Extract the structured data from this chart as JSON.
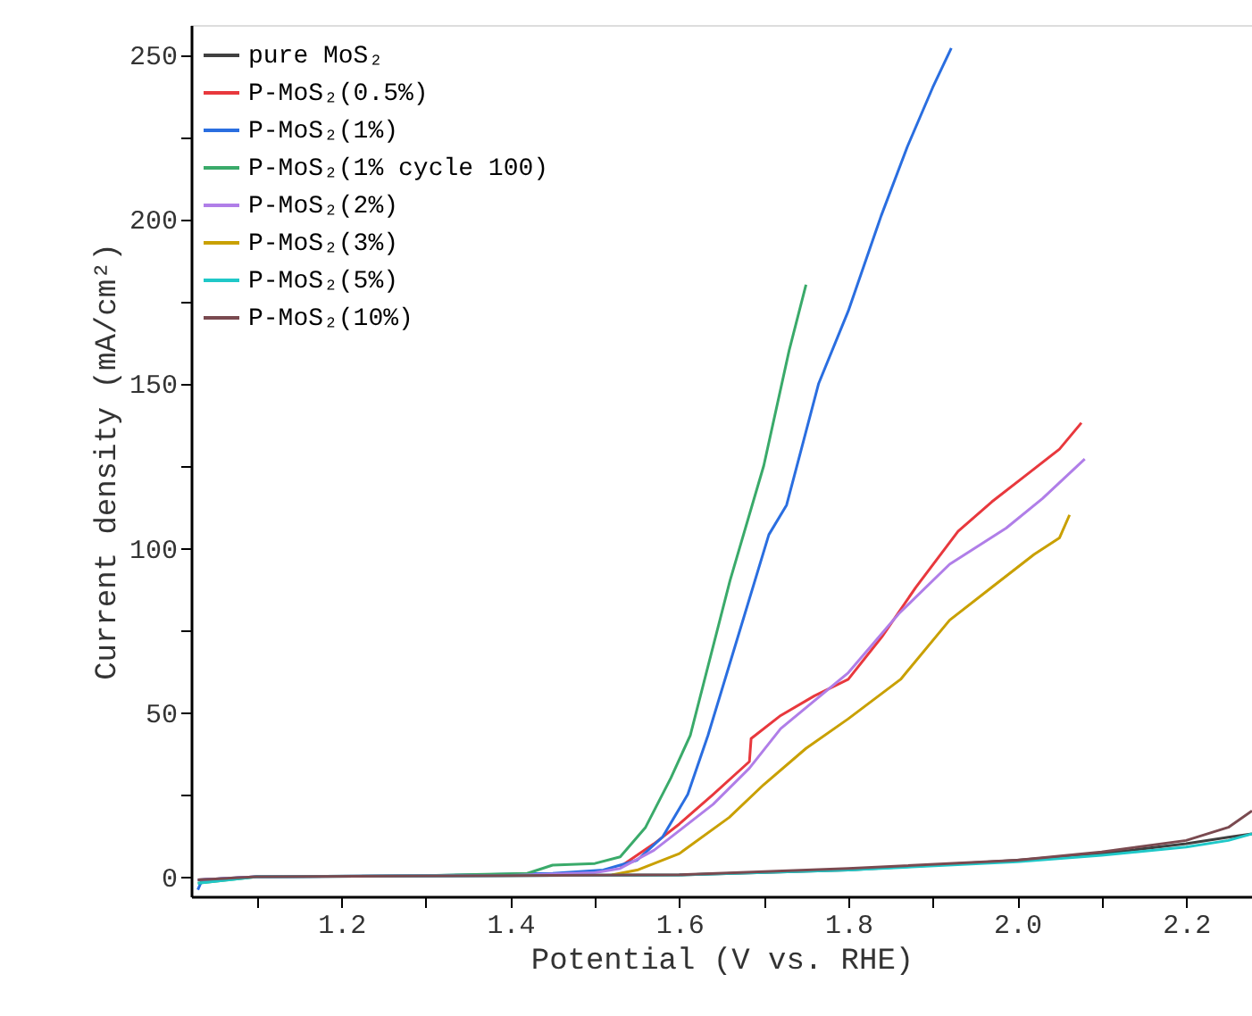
{
  "chart_data": {
    "type": "line",
    "xlabel": "Potential (V vs. RHE)",
    "ylabel": "Current density (mA/cm²)",
    "xlim": [
      1.022,
      2.278
    ],
    "ylim": [
      -6,
      259
    ],
    "xticks": [
      {
        "value": 1.1,
        "label": null
      },
      1.2,
      {
        "value": 1.3,
        "label": null
      },
      1.4,
      {
        "value": 1.5,
        "label": null
      },
      1.6,
      {
        "value": 1.7,
        "label": null
      },
      1.8,
      {
        "value": 1.9,
        "label": null
      },
      {
        "value": 2.0,
        "label": "2.0"
      },
      {
        "value": 2.1,
        "label": null
      },
      2.2
    ],
    "yticks": [
      0,
      {
        "value": 25,
        "label": null
      },
      50,
      {
        "value": 75,
        "label": null
      },
      100,
      {
        "value": 125,
        "label": null
      },
      150,
      {
        "value": 175,
        "label": null
      },
      200,
      {
        "value": 225,
        "label": null
      },
      250
    ],
    "grid": false,
    "legend": "top left",
    "marker": "none",
    "line_style": "solid",
    "series": [
      {
        "name": "pure MoS₂",
        "color": "#404040",
        "x": [
          1.03,
          1.1,
          1.4,
          1.6,
          1.8,
          2.0,
          2.1,
          2.2,
          2.25,
          2.278
        ],
        "values": [
          -1,
          0,
          0.3,
          0.5,
          2,
          5,
          7,
          10,
          12,
          13
        ]
      },
      {
        "name": "P-MoS₂(0.5%)",
        "color": "#e8383d",
        "x": [
          1.53,
          1.57,
          1.6,
          1.64,
          1.683,
          1.685,
          1.72,
          1.76,
          1.8,
          1.84,
          1.88,
          1.93,
          1.97,
          2.01,
          2.05,
          2.076
        ],
        "values": [
          3,
          10,
          16,
          25,
          35,
          42,
          49,
          55,
          60,
          73,
          88,
          105,
          114,
          122,
          130,
          138
        ]
      },
      {
        "name": "P-MoS₂(1%)",
        "color": "#2a6ee0",
        "x": [
          1.03,
          1.035,
          1.1,
          1.3,
          1.45,
          1.51,
          1.55,
          1.58,
          1.61,
          1.634,
          1.66,
          1.706,
          1.727,
          1.765,
          1.8,
          1.839,
          1.87,
          1.9,
          1.922
        ],
        "values": [
          -4,
          -1,
          0,
          0.3,
          1,
          2,
          5,
          12,
          25,
          43,
          65,
          104,
          113,
          150,
          172,
          201,
          222,
          240,
          252
        ]
      },
      {
        "name": "P-MoS₂(1% cycle 100)",
        "color": "#3aaa6a",
        "x": [
          1.03,
          1.1,
          1.3,
          1.42,
          1.45,
          1.5,
          1.53,
          1.56,
          1.59,
          1.613,
          1.63,
          1.66,
          1.7,
          1.73,
          1.75
        ],
        "values": [
          -2,
          0,
          0.3,
          1,
          3.5,
          4,
          6,
          15,
          30,
          43,
          60,
          90,
          125,
          160,
          180
        ]
      },
      {
        "name": "P-MoS₂(2%)",
        "color": "#b07ee8",
        "x": [
          1.03,
          1.1,
          1.4,
          1.5,
          1.53,
          1.57,
          1.6,
          1.64,
          1.683,
          1.72,
          1.8,
          1.86,
          1.92,
          1.987,
          2.03,
          2.08
        ],
        "values": [
          -1,
          0,
          0.4,
          1.2,
          2.5,
          8,
          14,
          22,
          33,
          45,
          62,
          80,
          95,
          106,
          115,
          127
        ]
      },
      {
        "name": "P-MoS₂(3%)",
        "color": "#c9a000",
        "x": [
          1.52,
          1.55,
          1.6,
          1.659,
          1.7,
          1.75,
          1.8,
          1.862,
          1.92,
          1.97,
          2.02,
          2.05,
          2.062
        ],
        "values": [
          0.5,
          2,
          7,
          18,
          28,
          39,
          48,
          60,
          78,
          88,
          98,
          103,
          110
        ]
      },
      {
        "name": "P-MoS₂(5%)",
        "color": "#1fc8c8",
        "x": [
          1.03,
          1.1,
          1.4,
          1.6,
          1.8,
          2.0,
          2.1,
          2.2,
          2.25,
          2.278
        ],
        "values": [
          -2,
          0,
          0.3,
          0.5,
          2,
          4.5,
          6.5,
          9,
          11,
          13
        ]
      },
      {
        "name": "P-MoS₂(10%)",
        "color": "#7a4a50",
        "x": [
          1.03,
          1.1,
          1.4,
          1.6,
          1.8,
          2.0,
          2.1,
          2.2,
          2.25,
          2.278
        ],
        "values": [
          -1,
          0,
          0.3,
          0.6,
          2.5,
          5,
          7.5,
          11,
          15,
          20
        ]
      }
    ]
  }
}
